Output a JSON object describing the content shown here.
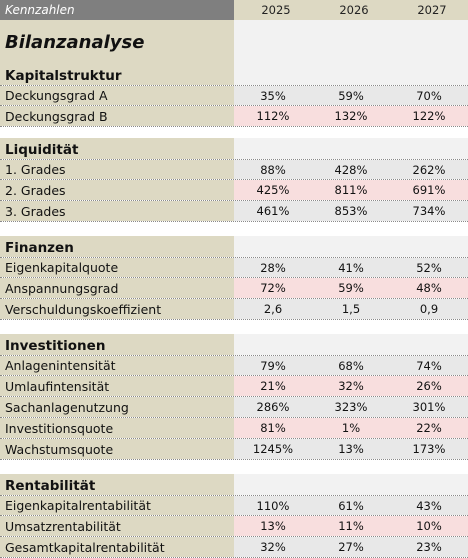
{
  "header": {
    "label": "Kennzahlen",
    "years": [
      "2025",
      "2026",
      "2027"
    ]
  },
  "title": "Bilanzanalyse",
  "sections": [
    {
      "name": "Kapitalstruktur",
      "rows": [
        {
          "label": "Deckungsgrad A",
          "values": [
            "35%",
            "59%",
            "70%"
          ]
        },
        {
          "label": "Deckungsgrad B",
          "values": [
            "112%",
            "132%",
            "122%"
          ]
        }
      ]
    },
    {
      "name": "Liquidität",
      "rows": [
        {
          "label": "1. Grades",
          "values": [
            "88%",
            "428%",
            "262%"
          ]
        },
        {
          "label": "2. Grades",
          "values": [
            "425%",
            "811%",
            "691%"
          ]
        },
        {
          "label": "3. Grades",
          "values": [
            "461%",
            "853%",
            "734%"
          ]
        }
      ]
    },
    {
      "name": "Finanzen",
      "rows": [
        {
          "label": "Eigenkapitalquote",
          "values": [
            "28%",
            "41%",
            "52%"
          ]
        },
        {
          "label": "Anspannungsgrad",
          "values": [
            "72%",
            "59%",
            "48%"
          ]
        },
        {
          "label": "Verschuldungskoeffizient",
          "values": [
            "2,6",
            "1,5",
            "0,9"
          ]
        }
      ]
    },
    {
      "name": "Investitionen",
      "rows": [
        {
          "label": "Anlagenintensität",
          "values": [
            "79%",
            "68%",
            "74%"
          ]
        },
        {
          "label": "Umlaufintensität",
          "values": [
            "21%",
            "32%",
            "26%"
          ]
        },
        {
          "label": "Sachanlagenutzung",
          "values": [
            "286%",
            "323%",
            "301%"
          ]
        },
        {
          "label": "Investitionsquote",
          "values": [
            "81%",
            "1%",
            "22%"
          ]
        },
        {
          "label": "Wachstumsquote",
          "values": [
            "1245%",
            "13%",
            "173%"
          ]
        }
      ]
    },
    {
      "name": "Rentabilität",
      "rows": [
        {
          "label": "Eigenkapitalrentabilität",
          "values": [
            "110%",
            "61%",
            "43%"
          ]
        },
        {
          "label": "Umsatzrentabilität",
          "values": [
            "13%",
            "11%",
            "10%"
          ]
        },
        {
          "label": "Gesamtkapitalrentabilität",
          "values": [
            "32%",
            "27%",
            "23%"
          ]
        }
      ]
    }
  ],
  "colors": {
    "label_bg": "#ddd9c3",
    "header_bg": "#7f7f7f",
    "row_pink": "#f8dede",
    "row_gray": "#e8e8e8",
    "value_bg": "#f2f2f2"
  }
}
